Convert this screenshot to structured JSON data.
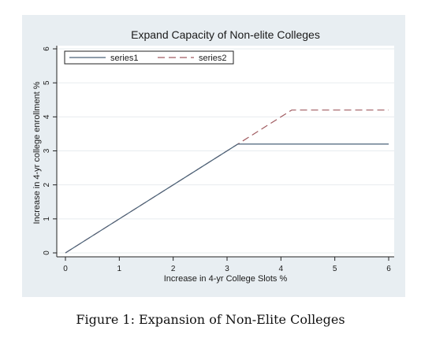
{
  "chart_data": {
    "type": "line",
    "title": "Expand Capacity of Non-elite Colleges",
    "xlabel": "Increase in 4-yr College Slots %",
    "ylabel": "Increase in 4-yr college enrollment %",
    "xlim": [
      0,
      6
    ],
    "ylim": [
      0,
      6
    ],
    "xticks": [
      "0",
      "1",
      "2",
      "3",
      "4",
      "5",
      "6"
    ],
    "yticks": [
      "0",
      "1",
      "2",
      "3",
      "4",
      "5",
      "6"
    ],
    "grid": "horizontal",
    "legend_position": "top",
    "series": [
      {
        "name": "series1",
        "style": "solid",
        "color": "#4a6278",
        "x": [
          0,
          3.2,
          6
        ],
        "y": [
          0,
          3.2,
          3.2
        ]
      },
      {
        "name": "series2",
        "style": "dashed",
        "color": "#a05b60",
        "x": [
          0,
          4.2,
          6
        ],
        "y": [
          0,
          4.2,
          4.2
        ]
      }
    ],
    "colors": {
      "outer_background": "#e8eef2",
      "plot_background": "#ffffff",
      "grid": "#e7ecef"
    }
  },
  "caption": "Figure 1: Expansion of Non-Elite Colleges"
}
